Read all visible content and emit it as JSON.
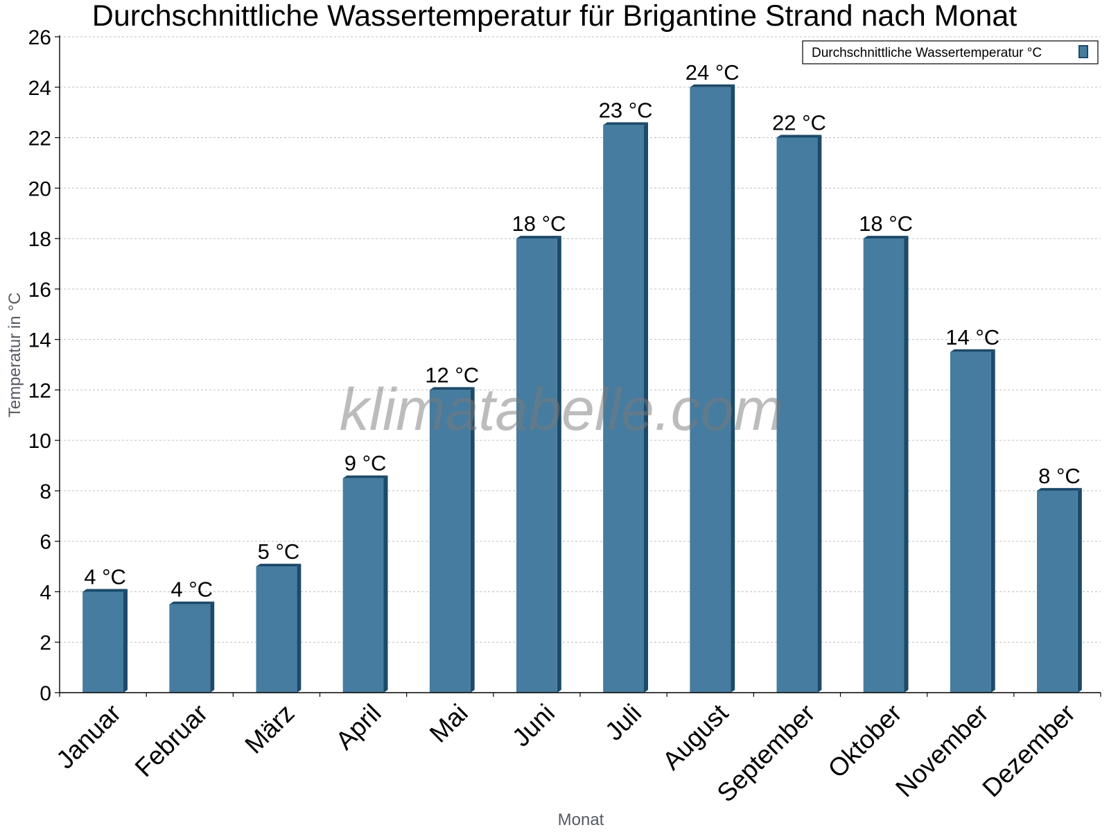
{
  "watermark": "klimatabelle.com",
  "chart_data": {
    "type": "bar",
    "title": "Durchschnittliche Wassertemperatur für Brigantine Strand nach Monat",
    "xlabel": "Monat",
    "ylabel": "Temperatur in °C",
    "ylim": [
      0,
      26
    ],
    "ytick_step": 2,
    "yticks": [
      "0",
      "2",
      "4",
      "6",
      "8",
      "10",
      "12",
      "14",
      "16",
      "18",
      "20",
      "22",
      "24",
      "26"
    ],
    "grid": true,
    "legend_position": "top-right",
    "categories": [
      "Januar",
      "Februar",
      "März",
      "April",
      "Mai",
      "Juni",
      "Juli",
      "August",
      "September",
      "Oktober",
      "November",
      "Dezember"
    ],
    "series": [
      {
        "name": "Durchschnittliche Wassertemperatur °C",
        "color": "#467c9f",
        "values": [
          4,
          3.5,
          5,
          8.5,
          12,
          18,
          22.5,
          24,
          22,
          18,
          13.5,
          8
        ],
        "labels": [
          "4 °C",
          "4 °C",
          "5 °C",
          "9 °C",
          "12 °C",
          "18 °C",
          "23 °C",
          "24 °C",
          "22 °C",
          "18 °C",
          "14 °C",
          "8 °C"
        ]
      }
    ],
    "colors": {
      "bar_face": "#467c9f",
      "bar_side": "#1c4a6b",
      "grid": "#bdbdbd",
      "axis": "#000000"
    }
  }
}
